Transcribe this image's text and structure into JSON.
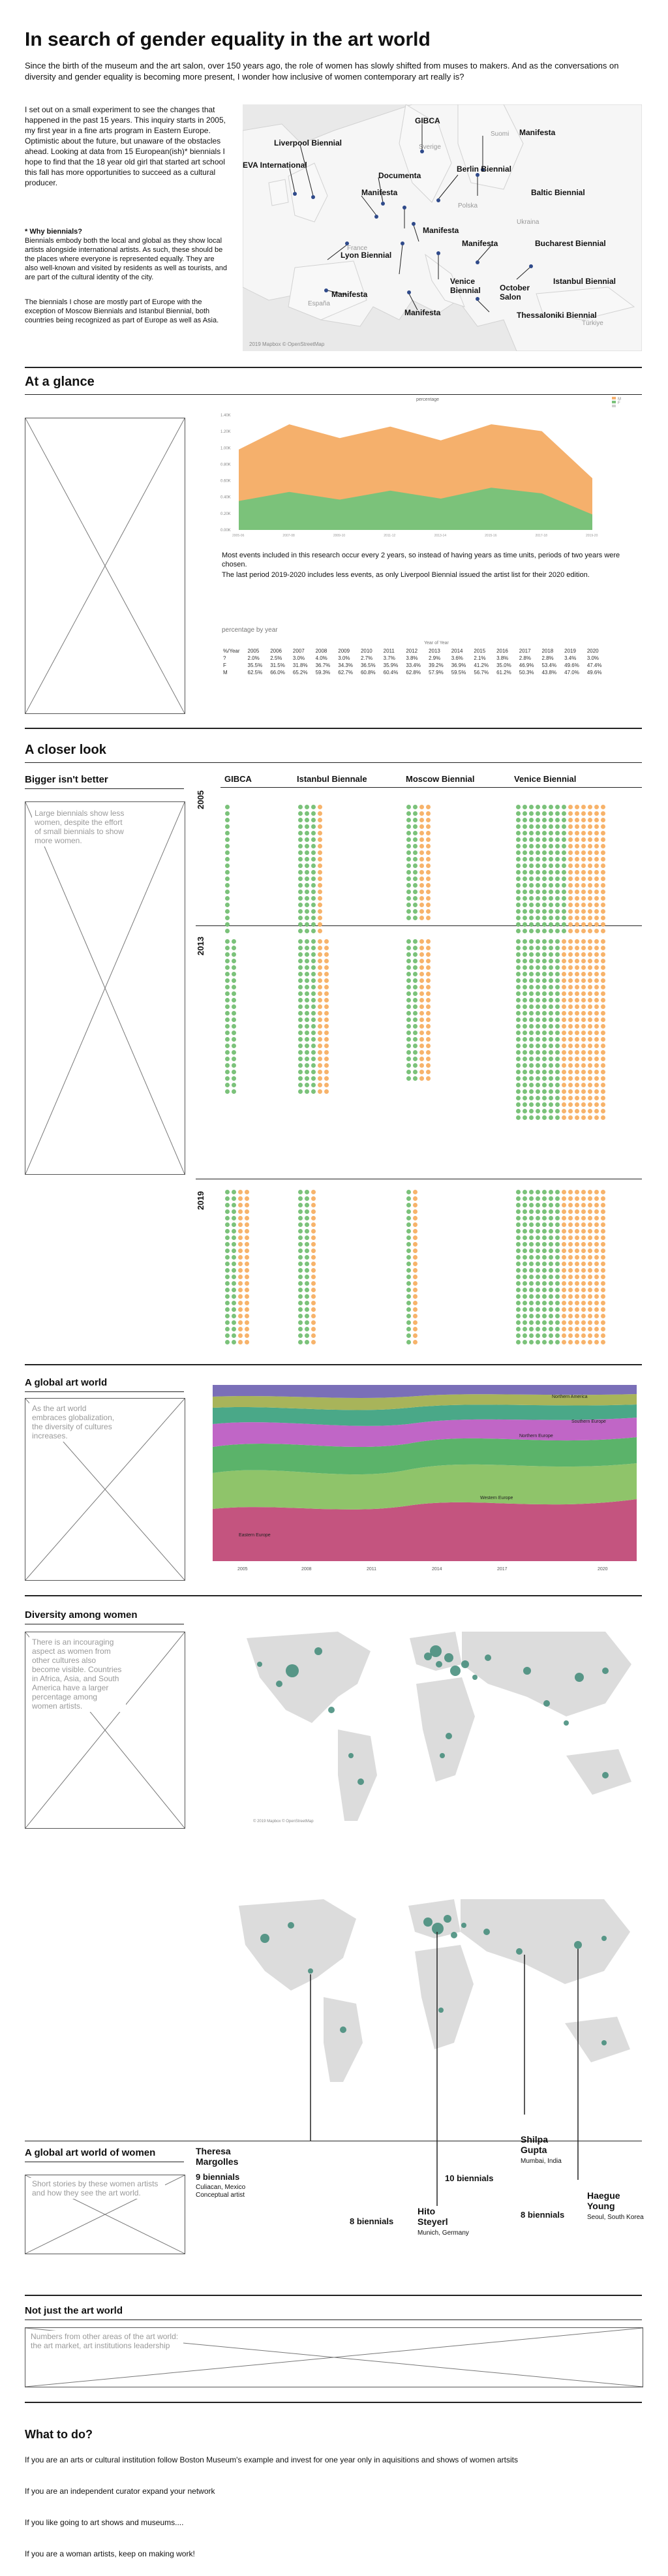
{
  "header": {
    "title": "In search of gender equality in the art world",
    "intro": "Since the birth of the museum and the art salon, over 150 years ago, the role of women has slowly shifted from muses to makers. And as the conversations on diversity and gender equality is becoming more present, I wonder how inclusive of women contemporary art really is?"
  },
  "experiment": {
    "text": "I set out on a small experiment to see the changes that happened in the past 15 years. This inquiry starts in 2005, my first year in a fine arts program in Eastern Europe. Optimistic about the future, but unaware of the obstacles ahead. Looking at data from 15 European(ish)* biennials I hope to find that the 18 year old girl that started art school this fall has more opportunities to succeed as a cultural producer.",
    "why_title": "* Why biennials?",
    "why_text": "Biennials embody both the local and global as they show local artists alongside international artists. As such, these should be the places where everyone is represented equally. They are also well-known and visited by residents as well as tourists, and are part of the cultural identity of the city.",
    "chosen_text": "The biennials I chose are mostly part of Europe with the exception of Moscow Biennials and Istanbul Biennial, both countries being recognized as part of Europe as well as Asia."
  },
  "europe_map": {
    "labels": [
      "GIBCA",
      "Manifesta",
      "Liverpool Biennial",
      "EVA International",
      "Documenta",
      "Manifesta",
      "Berlin Biennial",
      "Baltic Biennial",
      "Manifesta",
      "Lyon Biennial",
      "Manifesta",
      "Bucharest Biennial",
      "Venice Biennial",
      "October Salon",
      "Istanbul Biennial",
      "Manifesta",
      "Manifesta",
      "Thessaloniki Biennial"
    ],
    "regions": [
      "Sverige",
      "Suomi",
      "Polska",
      "Ukraina",
      "France",
      "España",
      "Türkiye"
    ],
    "credit": "2019 Mapbox © OpenStreetMap"
  },
  "at_a_glance": {
    "title": "At a glance",
    "chart_legend_title": "percentage",
    "note1": "Most events included in this research occur every 2 years, so instead of having years as time units, periods of two years were chosen.",
    "note2": "The last period 2019-2020 includes less events, as only Liverpool Biennial issued the artist list for their 2020 edition.",
    "table_title": "percentage by year",
    "table_axis": "Year of Year",
    "table_headers": [
      "%/Year",
      "2005",
      "2006",
      "2007",
      "2008",
      "2009",
      "2010",
      "2011",
      "2012",
      "2013",
      "2014",
      "2015",
      "2016",
      "2017",
      "2018",
      "2019",
      "2020"
    ],
    "table_rows": [
      [
        "?",
        "2.0%",
        "2.5%",
        "3.0%",
        "4.0%",
        "3.0%",
        "2.7%",
        "3.7%",
        "3.8%",
        "2.9%",
        "3.6%",
        "2.1%",
        "3.8%",
        "2.8%",
        "2.8%",
        "3.4%",
        "3.0%"
      ],
      [
        "F",
        "35.5%",
        "31.5%",
        "31.8%",
        "36.7%",
        "34.3%",
        "36.5%",
        "35.9%",
        "33.4%",
        "39.2%",
        "36.9%",
        "41.2%",
        "35.0%",
        "46.9%",
        "53.4%",
        "49.6%",
        "47.4%"
      ],
      [
        "M",
        "62.5%",
        "66.0%",
        "65.2%",
        "59.3%",
        "62.7%",
        "60.8%",
        "60.4%",
        "62.8%",
        "57.9%",
        "59.5%",
        "56.7%",
        "61.2%",
        "50.3%",
        "43.8%",
        "47.0%",
        "49.6%"
      ]
    ]
  },
  "chart_data": {
    "type": "area",
    "title": "percentage",
    "categories": [
      "2005-06",
      "2007-08",
      "2009-10",
      "2011-12",
      "2013-14",
      "2015-16",
      "2017-18",
      "2019-20"
    ],
    "series": [
      {
        "name": "F",
        "values": [
          36,
          36,
          33,
          38,
          35,
          40,
          37,
          30
        ]
      },
      {
        "name": "M",
        "values": [
          64,
          64,
          67,
          62,
          65,
          60,
          63,
          70
        ]
      }
    ],
    "ylim": [
      0,
      100
    ],
    "ytick_labels": [
      "0.00K",
      "0.20K",
      "0.40K",
      "0.60K",
      "0.80K",
      "1.00K",
      "1.20K",
      "1.40K"
    ]
  },
  "closer_look": {
    "title": "A closer look",
    "bigger_title": "Bigger isn't better",
    "bigger_note": "Large biennials show less women, despite the effort of small biennials to show more women.",
    "columns": [
      "GIBCA",
      "Istanbul Biennale",
      "Moscow Biennial",
      "Venice Biennial"
    ],
    "years": [
      "2005",
      "2013",
      "2019"
    ]
  },
  "global": {
    "title": "A global art world",
    "note": "As the art world embraces globalization, the diversity of cultures increases.",
    "stream_labels": [
      "Eastern Europe",
      "Western Europe",
      "Northern Europe",
      "Southern Europe",
      "Northern America"
    ],
    "years": [
      "2005",
      "2008",
      "2011",
      "2014",
      "2017",
      "2020"
    ]
  },
  "diversity": {
    "title": "Diversity among women",
    "note": "There is an incouraging aspect as women from other cultures also become visible. Countries in Africa, Asia, and South America have a larger percentage among women artists.",
    "credit": "© 2019 Mapbox © OpenStreetMap"
  },
  "women_world": {
    "title": "A global art world of women",
    "note": "Short stories by these women artists and how they see the art world.",
    "artists": [
      {
        "name": "Theresa Margolles",
        "count": "9 biennials",
        "place": "Culiacan, Mexico Conceptual artist"
      },
      {
        "name": "Hito Steyerl",
        "count": "8 biennials",
        "place": "Munich, Germany"
      },
      {
        "name": "Shilpa Gupta",
        "count": "10 biennials",
        "place": "Mumbai, India"
      },
      {
        "name": "Haegue Young",
        "count": "8 biennials",
        "place": "Seoul, South Korea"
      }
    ]
  },
  "not_just": {
    "title": "Not just the art world",
    "note": "Numbers from other areas of the art world: the art market, art institutions leadership"
  },
  "what_to_do": {
    "title": "What to do?",
    "items": [
      "If you are an arts or cultural institution follow Boston Museum's example and invest for one year only in aquisitions and shows of women artsits",
      "If you are an independent curator expand your network",
      "If you like going to art shows and museums....",
      "If you are a woman artists, keep on making work!"
    ]
  },
  "colors": {
    "female": "#7bc27a",
    "male": "#f7b36b"
  }
}
